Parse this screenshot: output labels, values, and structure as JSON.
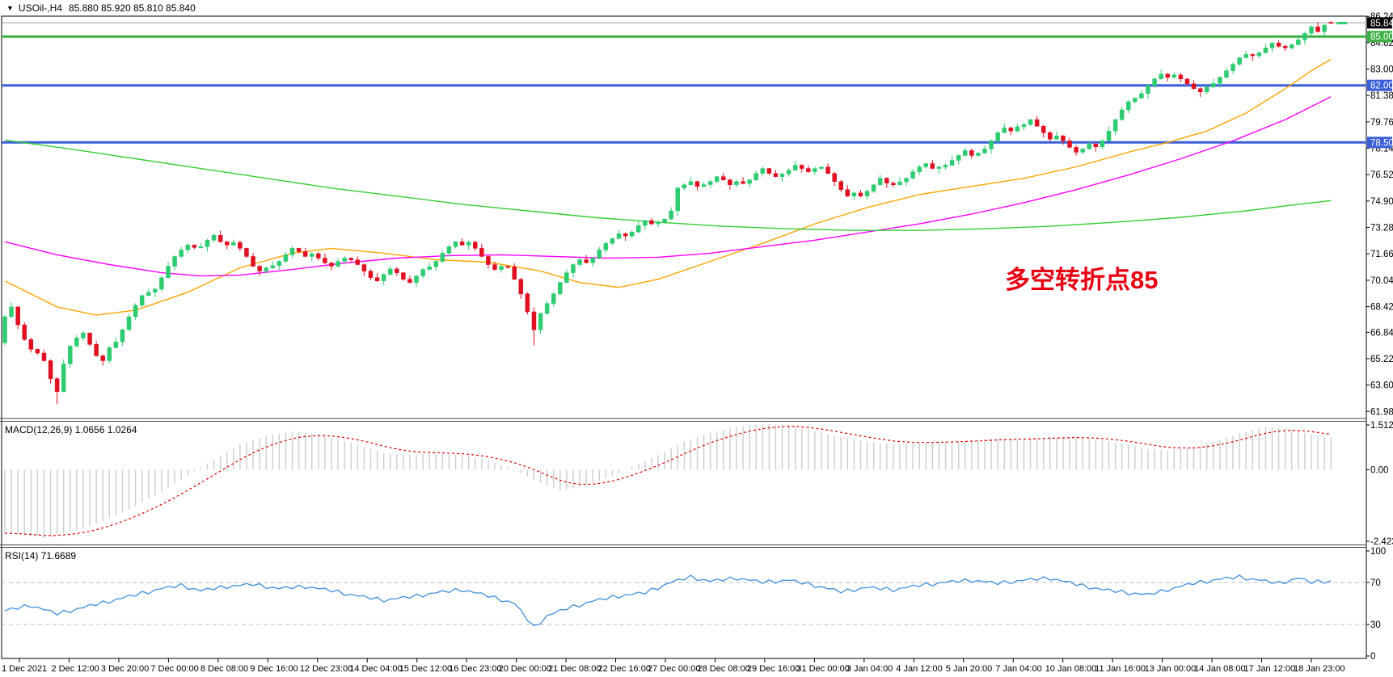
{
  "title_bar": {
    "dropdown_icon": "▼",
    "symbol": "USOil-,H4",
    "ohlc": "85.880 85.920 85.810 85.840"
  },
  "indicators": {
    "macd_label": "MACD(12,26,9) 1.0656 1.0264",
    "rsi_label": "RSI(14) 71.6689"
  },
  "annotation": {
    "text": "多空转折点85",
    "color": "#E60012"
  },
  "chart_data": {
    "type": "candlestick",
    "symbol": "USOil-",
    "timeframe": "H4",
    "current_bar": {
      "open": 85.88,
      "high": 85.92,
      "low": 85.81,
      "close": 85.84
    },
    "colors": {
      "bull": "#2ECC71",
      "bear": "#E01021",
      "ma_fast": "#FFA500",
      "ma_mid": "#FF00FF",
      "ma_slow": "#32CD32",
      "level_green": "#3CB043",
      "level_blue": "#3B5FD9",
      "bid_line": "#A0A0A0",
      "bid_badge_bg": "#000000",
      "macd_hist": "#CCCCCC",
      "macd_signal": "#E00000",
      "rsi_line": "#3E8EDE",
      "rsi_level": "#BBBBBB",
      "frame": "#444444",
      "axis_text": "#000000"
    },
    "price_axis": {
      "labels": [
        "86.240",
        "84.620",
        "83.000",
        "81.380",
        "79.760",
        "78.140",
        "76.520",
        "74.900",
        "73.280",
        "71.660",
        "70.040",
        "68.420",
        "66.845",
        "65.225",
        "63.605",
        "61.985"
      ],
      "badges": [
        {
          "label": "85.840",
          "price": 85.84,
          "bg": "#000000"
        },
        {
          "label": "85.000",
          "price": 85.0,
          "bg": "#3CB043"
        },
        {
          "label": "82.000",
          "price": 82.0,
          "bg": "#3B5FD9"
        },
        {
          "label": "78.500",
          "price": 78.5,
          "bg": "#3B5FD9"
        }
      ],
      "ylim": [
        61.9,
        86.45
      ]
    },
    "levels": [
      {
        "price": 85.84,
        "color": "#A0A0A0",
        "width": 1
      },
      {
        "price": 85.0,
        "color": "#3CB043",
        "width": 3
      },
      {
        "price": 82.0,
        "color": "#3B5FD9",
        "width": 3
      },
      {
        "price": 78.5,
        "color": "#3B5FD9",
        "width": 3
      }
    ],
    "candles": {
      "first_open": 66.2,
      "upper_wick_pattern": [
        0.1,
        0.28,
        0.06,
        0.18,
        0.12,
        0.04,
        0.22,
        0.08
      ],
      "lower_wick_pattern": [
        0.15,
        0.05,
        0.25,
        0.08,
        0.2,
        0.1,
        0.05,
        0.3
      ],
      "overrides": {
        "8": {
          "l": 62.43
        },
        "81": {
          "l": 66.04
        },
        "203": {
          "o": 85.88,
          "h": 85.92,
          "l": 85.81,
          "c": 85.84
        }
      },
      "closes": [
        67.8,
        68.4,
        67.3,
        66.4,
        65.8,
        65.57,
        65.1,
        64.0,
        63.2,
        64.9,
        66.0,
        66.5,
        66.8,
        66.1,
        65.4,
        65.1,
        65.9,
        66.26,
        67.0,
        67.8,
        68.5,
        69.1,
        69.3,
        69.49,
        70.2,
        70.9,
        71.5,
        71.9,
        72.2,
        72.05,
        72.1,
        72.5,
        72.8,
        72.4,
        72.2,
        72.36,
        72.0,
        71.5,
        70.9,
        70.6,
        70.8,
        70.94,
        71.2,
        71.6,
        72.0,
        71.8,
        71.5,
        71.67,
        71.4,
        71.1,
        70.9,
        71.2,
        71.4,
        71.29,
        71.0,
        70.6,
        70.2,
        70.0,
        70.4,
        70.73,
        70.5,
        70.1,
        69.9,
        70.3,
        70.7,
        70.87,
        71.2,
        71.7,
        72.1,
        72.4,
        72.2,
        72.38,
        72.0,
        71.5,
        71.0,
        70.7,
        70.9,
        70.86,
        70.1,
        69.2,
        68.1,
        67.0,
        68.0,
        68.61,
        69.2,
        69.9,
        70.5,
        71.0,
        71.3,
        71.12,
        71.4,
        71.9,
        72.3,
        72.6,
        72.9,
        72.76,
        73.0,
        73.4,
        73.7,
        73.5,
        73.6,
        73.79,
        74.3,
        75.7,
        75.9,
        76.1,
        75.8,
        75.91,
        76.1,
        76.4,
        76.2,
        75.9,
        76.1,
        75.98,
        76.2,
        76.6,
        76.9,
        76.6,
        76.4,
        76.56,
        76.8,
        77.1,
        76.9,
        76.7,
        76.9,
        76.99,
        76.6,
        76.1,
        75.6,
        75.2,
        75.4,
        75.21,
        75.5,
        75.9,
        76.3,
        76.0,
        75.9,
        76.08,
        76.3,
        76.7,
        77.0,
        77.2,
        76.9,
        76.99,
        77.1,
        77.4,
        77.7,
        78.0,
        77.7,
        77.85,
        78.1,
        78.6,
        79.1,
        79.4,
        79.2,
        79.46,
        79.6,
        79.9,
        79.5,
        79.1,
        78.7,
        78.9,
        78.6,
        78.2,
        77.9,
        78.1,
        78.4,
        78.23,
        78.6,
        79.2,
        79.9,
        80.5,
        81.0,
        81.22,
        81.5,
        82.0,
        82.4,
        82.7,
        82.5,
        82.64,
        82.4,
        82.1,
        81.8,
        81.6,
        81.9,
        82.12,
        82.5,
        82.9,
        83.3,
        83.7,
        83.9,
        83.82,
        84.0,
        84.3,
        84.6,
        84.4,
        84.3,
        84.5,
        84.8,
        85.2,
        85.6,
        85.3,
        85.7,
        85.84
      ]
    },
    "moving_averages": [
      {
        "name": "ma-fast-orange",
        "color": "#FFA500",
        "points": [
          [
            0,
            70.0
          ],
          [
            8,
            68.4
          ],
          [
            14,
            67.9
          ],
          [
            20,
            68.2
          ],
          [
            28,
            69.3
          ],
          [
            36,
            70.8
          ],
          [
            44,
            71.7
          ],
          [
            50,
            72.0
          ],
          [
            58,
            71.7
          ],
          [
            66,
            71.3
          ],
          [
            74,
            71.15
          ],
          [
            82,
            70.6
          ],
          [
            88,
            69.9
          ],
          [
            94,
            69.6
          ],
          [
            100,
            70.1
          ],
          [
            108,
            71.2
          ],
          [
            116,
            72.3
          ],
          [
            124,
            73.5
          ],
          [
            132,
            74.5
          ],
          [
            140,
            75.3
          ],
          [
            148,
            75.8
          ],
          [
            156,
            76.3
          ],
          [
            164,
            77.0
          ],
          [
            172,
            77.9
          ],
          [
            178,
            78.5
          ],
          [
            184,
            79.2
          ],
          [
            190,
            80.3
          ],
          [
            196,
            81.8
          ],
          [
            200,
            82.9
          ],
          [
            203,
            83.6
          ]
        ]
      },
      {
        "name": "ma-mid-magenta",
        "color": "#FF00FF",
        "points": [
          [
            0,
            72.4
          ],
          [
            8,
            71.6
          ],
          [
            16,
            71.0
          ],
          [
            24,
            70.5
          ],
          [
            30,
            70.3
          ],
          [
            36,
            70.35
          ],
          [
            44,
            70.7
          ],
          [
            52,
            71.1
          ],
          [
            60,
            71.4
          ],
          [
            68,
            71.55
          ],
          [
            76,
            71.6
          ],
          [
            84,
            71.5
          ],
          [
            92,
            71.4
          ],
          [
            100,
            71.45
          ],
          [
            108,
            71.7
          ],
          [
            116,
            72.1
          ],
          [
            124,
            72.5
          ],
          [
            132,
            73.0
          ],
          [
            140,
            73.5
          ],
          [
            148,
            74.1
          ],
          [
            156,
            74.8
          ],
          [
            164,
            75.6
          ],
          [
            172,
            76.5
          ],
          [
            180,
            77.5
          ],
          [
            188,
            78.6
          ],
          [
            196,
            79.9
          ],
          [
            203,
            81.3
          ]
        ]
      },
      {
        "name": "ma-slow-green",
        "color": "#32CD32",
        "points": [
          [
            0,
            78.65
          ],
          [
            10,
            78.1
          ],
          [
            20,
            77.5
          ],
          [
            30,
            76.9
          ],
          [
            40,
            76.3
          ],
          [
            50,
            75.7
          ],
          [
            60,
            75.2
          ],
          [
            70,
            74.7
          ],
          [
            80,
            74.3
          ],
          [
            90,
            73.9
          ],
          [
            100,
            73.6
          ],
          [
            110,
            73.35
          ],
          [
            120,
            73.2
          ],
          [
            130,
            73.1
          ],
          [
            140,
            73.1
          ],
          [
            150,
            73.2
          ],
          [
            160,
            73.35
          ],
          [
            170,
            73.6
          ],
          [
            180,
            73.9
          ],
          [
            190,
            74.3
          ],
          [
            198,
            74.7
          ],
          [
            203,
            74.93
          ]
        ]
      }
    ],
    "macd": {
      "axis_labels": [
        "1.5124",
        "0.00",
        "-2.4234"
      ],
      "ylim": [
        -2.4234,
        1.5124
      ],
      "values_label": "1.0656 1.0264",
      "anchors": [
        [
          0,
          -2.15
        ],
        [
          6,
          -2.3
        ],
        [
          12,
          -2.0
        ],
        [
          18,
          -1.45
        ],
        [
          24,
          -0.75
        ],
        [
          28,
          -0.2
        ],
        [
          32,
          0.35
        ],
        [
          36,
          0.85
        ],
        [
          40,
          1.15
        ],
        [
          44,
          1.28
        ],
        [
          48,
          1.2
        ],
        [
          54,
          0.85
        ],
        [
          58,
          0.55
        ],
        [
          62,
          0.5
        ],
        [
          66,
          0.55
        ],
        [
          70,
          0.5
        ],
        [
          74,
          0.3
        ],
        [
          78,
          0.0
        ],
        [
          82,
          -0.45
        ],
        [
          85,
          -0.72
        ],
        [
          88,
          -0.6
        ],
        [
          92,
          -0.3
        ],
        [
          96,
          0.1
        ],
        [
          100,
          0.5
        ],
        [
          104,
          0.95
        ],
        [
          108,
          1.25
        ],
        [
          112,
          1.45
        ],
        [
          116,
          1.55
        ],
        [
          120,
          1.5
        ],
        [
          124,
          1.3
        ],
        [
          128,
          1.1
        ],
        [
          132,
          0.95
        ],
        [
          136,
          0.85
        ],
        [
          140,
          0.9
        ],
        [
          144,
          0.95
        ],
        [
          148,
          1.0
        ],
        [
          152,
          1.05
        ],
        [
          156,
          1.05
        ],
        [
          160,
          1.1
        ],
        [
          164,
          1.1
        ],
        [
          168,
          1.0
        ],
        [
          172,
          0.85
        ],
        [
          175,
          0.7
        ],
        [
          178,
          0.65
        ],
        [
          182,
          0.75
        ],
        [
          186,
          1.0
        ],
        [
          190,
          1.3
        ],
        [
          193,
          1.45
        ],
        [
          196,
          1.4
        ],
        [
          199,
          1.25
        ],
        [
          202,
          1.1
        ],
        [
          203,
          1.07
        ]
      ]
    },
    "rsi": {
      "axis_labels": [
        "100",
        "70",
        "30",
        "0"
      ],
      "ylim": [
        0,
        100
      ],
      "dashed_levels": [
        70,
        30
      ],
      "value": 71.6689,
      "jitter": [
        0,
        1.5,
        -1.0,
        2.0,
        -1.8,
        0.6
      ],
      "anchors": [
        [
          0,
          43
        ],
        [
          4,
          48
        ],
        [
          8,
          40
        ],
        [
          12,
          46
        ],
        [
          16,
          52
        ],
        [
          20,
          58
        ],
        [
          24,
          64
        ],
        [
          27,
          67
        ],
        [
          30,
          62
        ],
        [
          34,
          66
        ],
        [
          38,
          68
        ],
        [
          42,
          64
        ],
        [
          46,
          66
        ],
        [
          50,
          62
        ],
        [
          54,
          57
        ],
        [
          58,
          53
        ],
        [
          62,
          56
        ],
        [
          66,
          60
        ],
        [
          70,
          63
        ],
        [
          74,
          57
        ],
        [
          78,
          50
        ],
        [
          81,
          27
        ],
        [
          83,
          38
        ],
        [
          86,
          45
        ],
        [
          90,
          52
        ],
        [
          94,
          57
        ],
        [
          98,
          60
        ],
        [
          102,
          70
        ],
        [
          105,
          75
        ],
        [
          108,
          71
        ],
        [
          112,
          74
        ],
        [
          116,
          70
        ],
        [
          120,
          72
        ],
        [
          124,
          67
        ],
        [
          128,
          61
        ],
        [
          132,
          65
        ],
        [
          136,
          63
        ],
        [
          140,
          67
        ],
        [
          144,
          70
        ],
        [
          148,
          72
        ],
        [
          152,
          69
        ],
        [
          156,
          72
        ],
        [
          160,
          74
        ],
        [
          164,
          68
        ],
        [
          168,
          63
        ],
        [
          172,
          60
        ],
        [
          175,
          58
        ],
        [
          178,
          63
        ],
        [
          182,
          69
        ],
        [
          186,
          73
        ],
        [
          189,
          75
        ],
        [
          192,
          72
        ],
        [
          195,
          69
        ],
        [
          198,
          74
        ],
        [
          200,
          70
        ],
        [
          203,
          71.67
        ]
      ]
    },
    "time_axis": {
      "labels": [
        "1 Dec 2021",
        "2 Dec 12:00",
        "3 Dec 20:00",
        "7 Dec 00:00",
        "8 Dec 08:00",
        "9 Dec 16:00",
        "12 Dec 23:00",
        "14 Dec 04:00",
        "15 Dec 12:00",
        "16 Dec 23:00",
        "20 Dec 00:00",
        "21 Dec 08:00",
        "22 Dec 16:00",
        "27 Dec 00:00",
        "28 Dec 08:00",
        "29 Dec 16:00",
        "31 Dec 00:00",
        "3 Jan 04:00",
        "4 Jan 12:00",
        "5 Jan 20:00",
        "7 Jan 04:00",
        "10 Jan 08:00",
        "11 Jan 16:00",
        "13 Jan 00:00",
        "14 Jan 08:00",
        "17 Jan 12:00",
        "18 Jan 23:00"
      ]
    }
  }
}
